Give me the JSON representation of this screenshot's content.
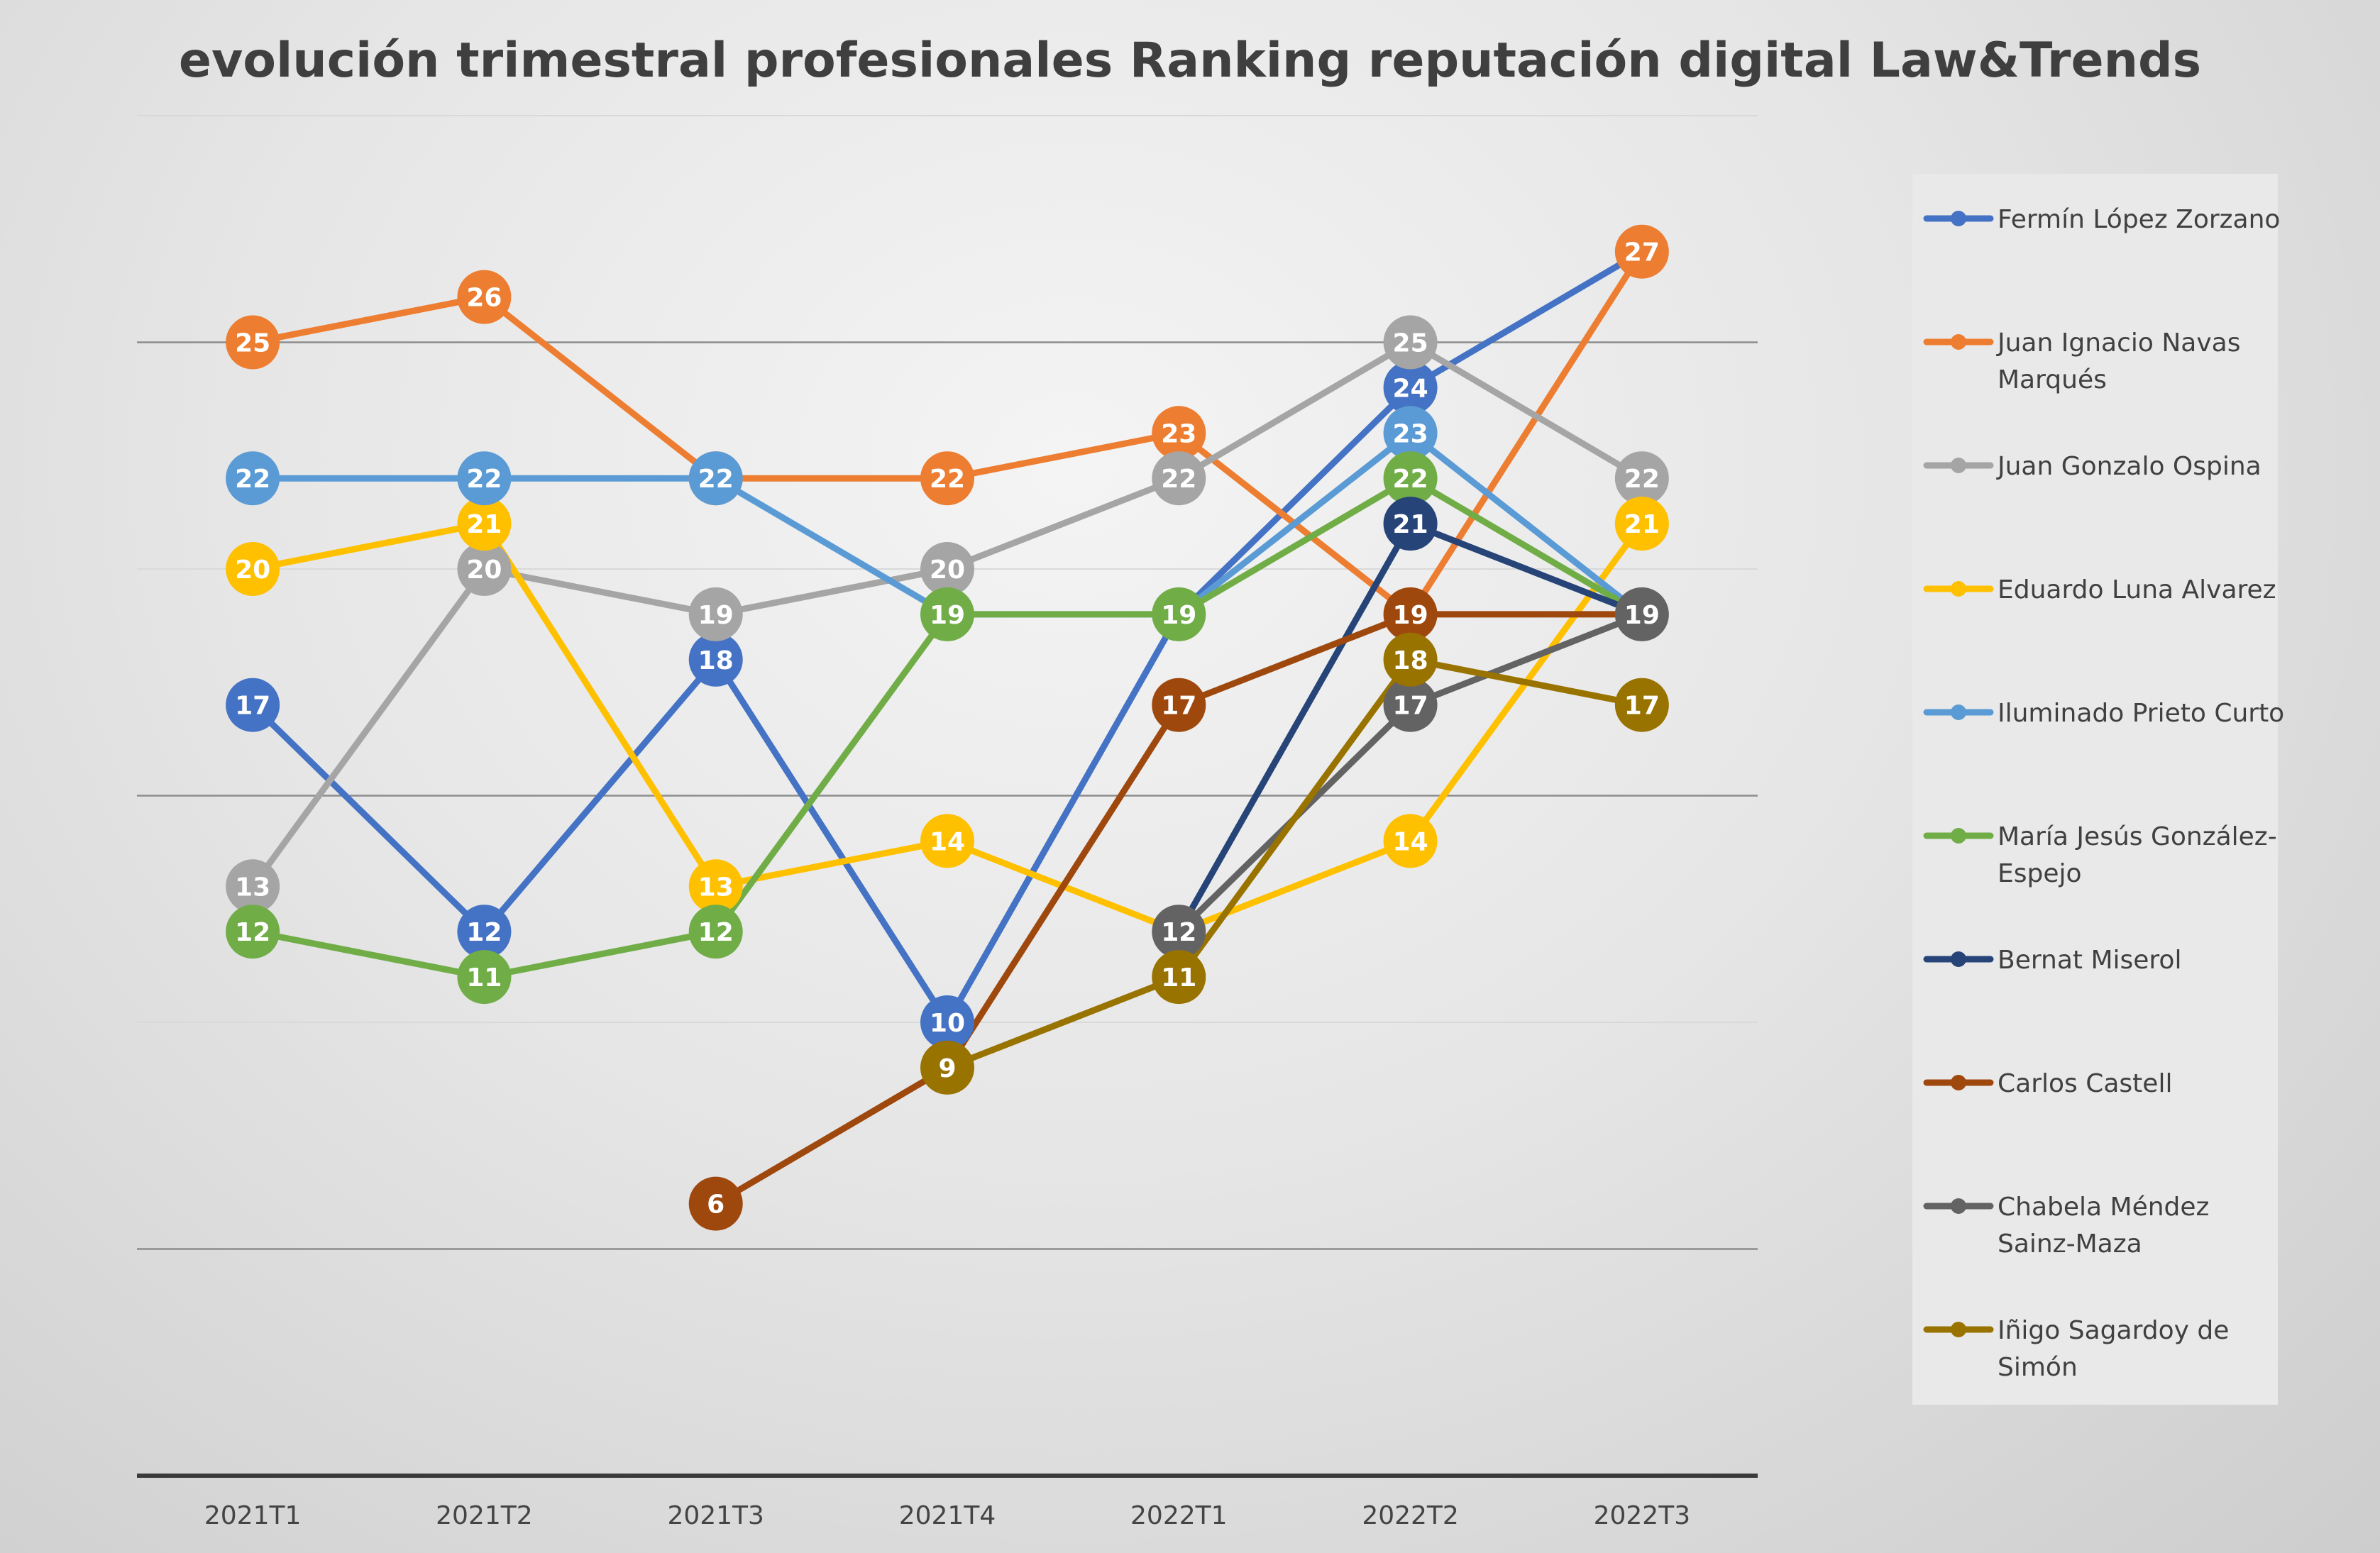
{
  "chart_data": {
    "type": "line",
    "title": "evolución trimestral profesionales Ranking reputación digital Law&Trends",
    "xlabel": "",
    "ylabel": "",
    "categories": [
      "2021T1",
      "2021T2",
      "2021T3",
      "2021T4",
      "2022T1",
      "2022T2",
      "2022T3"
    ],
    "ylim": [
      0,
      30
    ],
    "grid": true,
    "legend_position": "right",
    "series": [
      {
        "name": "Fermín López Zorzano",
        "color": "#4472C4",
        "values": [
          17,
          12,
          18,
          10,
          19,
          24,
          27
        ],
        "labels": [
          "17",
          "12",
          "18",
          "10",
          "",
          "24",
          ""
        ]
      },
      {
        "name": "Juan Ignacio  Navas Marqués",
        "color": "#ED7D31",
        "values": [
          25,
          26,
          22,
          22,
          23,
          19,
          27
        ],
        "labels": [
          "25",
          "26",
          "22",
          "22",
          "23",
          "",
          "27"
        ]
      },
      {
        "name": "Juan Gonzalo Ospina",
        "color": "#A5A5A5",
        "values": [
          13,
          20,
          19,
          20,
          22,
          25,
          22
        ],
        "labels": [
          "13",
          "20",
          "19",
          "20",
          "22",
          "25",
          "22"
        ]
      },
      {
        "name": "Eduardo Luna Alvarez",
        "color": "#FFC000",
        "values": [
          20,
          21,
          13,
          14,
          12,
          14,
          21
        ],
        "labels": [
          "20",
          "21",
          "13",
          "14",
          "",
          "14",
          "21"
        ]
      },
      {
        "name": "Iluminado  Prieto Curto",
        "color": "#5B9BD5",
        "values": [
          22,
          22,
          22,
          19,
          19,
          23,
          19
        ],
        "labels": [
          "22",
          "22",
          "22",
          "",
          "",
          "23",
          ""
        ]
      },
      {
        "name": "María Jesús González-Espejo",
        "color": "#70AD47",
        "values": [
          12,
          11,
          12,
          19,
          19,
          22,
          19
        ],
        "labels": [
          "12",
          "11",
          "12",
          "19",
          "19",
          "22",
          ""
        ]
      },
      {
        "name": "Bernat Miserol",
        "color": "#264478",
        "values": [
          null,
          null,
          null,
          null,
          12,
          21,
          19
        ],
        "labels": [
          "",
          "",
          "",
          "",
          "",
          "21",
          ""
        ]
      },
      {
        "name": "Carlos Castell",
        "color": "#9E480E",
        "values": [
          null,
          null,
          6,
          9,
          17,
          19,
          19
        ],
        "labels": [
          "",
          "",
          "6",
          "",
          "17",
          "19",
          ""
        ]
      },
      {
        "name": "Chabela  Méndez Sainz-Maza",
        "color": "#636363",
        "values": [
          null,
          null,
          null,
          null,
          12,
          17,
          19
        ],
        "labels": [
          "",
          "",
          "",
          "",
          "12",
          "17",
          "19"
        ]
      },
      {
        "name": "Iñigo Sagardoy de Simón",
        "color": "#997300",
        "values": [
          null,
          null,
          null,
          9,
          11,
          18,
          17
        ],
        "labels": [
          "",
          "",
          "",
          "9",
          "11",
          "18",
          "17"
        ]
      }
    ],
    "legend_lines": [
      [
        "Fermín López Zorzano"
      ],
      [
        "Juan Ignacio  Navas",
        "Marqués"
      ],
      [
        "Juan Gonzalo Ospina"
      ],
      [
        "Eduardo Luna Alvarez"
      ],
      [
        "Iluminado  Prieto Curto"
      ],
      [
        "María Jesús González-",
        "Espejo"
      ],
      [
        "Bernat Miserol"
      ],
      [
        "Carlos Castell"
      ],
      [
        "Chabela  Méndez",
        "Sainz-Maza"
      ],
      [
        "Iñigo Sagardoy de",
        "Simón"
      ]
    ]
  }
}
